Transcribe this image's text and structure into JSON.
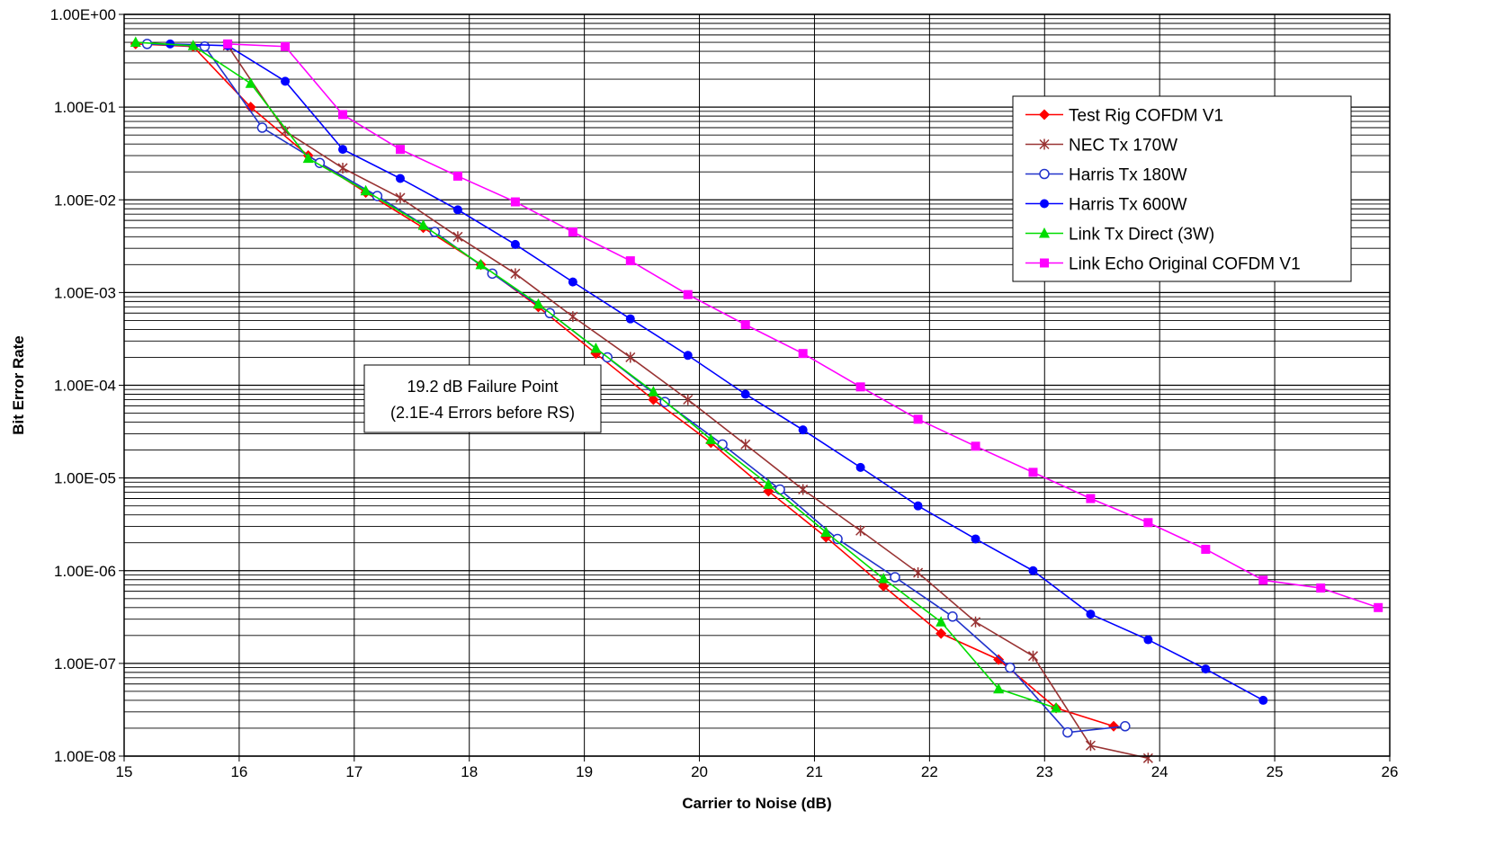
{
  "chart_data": {
    "type": "line",
    "title": "",
    "xlabel": "Carrier to Noise (dB)",
    "ylabel": "Bit Error Rate",
    "xlim": [
      15,
      26
    ],
    "ylim": [
      1e-08,
      1
    ],
    "y_scale": "log",
    "grid": true,
    "legend_position": "top-right",
    "x_ticks": [
      "15",
      "16",
      "17",
      "18",
      "19",
      "20",
      "21",
      "22",
      "23",
      "24",
      "25",
      "26"
    ],
    "y_ticks": [
      "1.00E+00",
      "1.00E-01",
      "1.00E-02",
      "1.00E-03",
      "1.00E-04",
      "1.00E-05",
      "1.00E-06",
      "1.00E-07",
      "1.00E-08"
    ],
    "annotation": {
      "lines": [
        "19.2 dB Failure Point",
        "(2.1E-4 Errors before RS)"
      ]
    },
    "series": [
      {
        "name": "Test Rig COFDM V1",
        "color": "#ff0000",
        "marker": "diamond",
        "x": [
          15.1,
          15.6,
          16.1,
          16.6,
          17.1,
          17.6,
          18.1,
          18.6,
          19.1,
          19.6,
          20.1,
          20.6,
          21.1,
          21.6,
          22.1,
          22.6,
          23.1,
          23.6
        ],
        "y": [
          0.48,
          0.45,
          0.1,
          0.03,
          0.012,
          0.005,
          0.002,
          0.0007,
          0.00022,
          7e-05,
          2.4e-05,
          7.2e-06,
          2.3e-06,
          6.8e-07,
          2.1e-07,
          1.1e-07,
          3.3e-08,
          2.1e-08
        ]
      },
      {
        "name": "NEC Tx 170W",
        "color": "#993333",
        "marker": "star",
        "x": [
          15.9,
          16.4,
          16.9,
          17.4,
          17.9,
          18.4,
          18.9,
          19.4,
          19.9,
          20.4,
          20.9,
          21.4,
          21.9,
          22.4,
          22.9,
          23.4,
          23.9
        ],
        "y": [
          0.46,
          0.055,
          0.022,
          0.0105,
          0.004,
          0.0016,
          0.00055,
          0.0002,
          7e-05,
          2.3e-05,
          7.5e-06,
          2.7e-06,
          9.5e-07,
          2.8e-07,
          1.2e-07,
          1.3e-08,
          9.5e-09
        ]
      },
      {
        "name": "Harris Tx 180W",
        "color": "#2233cc",
        "marker": "open-circle",
        "x": [
          15.2,
          15.7,
          16.2,
          16.7,
          17.2,
          17.7,
          18.2,
          18.7,
          19.2,
          19.7,
          20.2,
          20.7,
          21.2,
          21.7,
          22.2,
          22.7,
          23.2,
          23.7
        ],
        "y": [
          0.48,
          0.45,
          0.06,
          0.025,
          0.011,
          0.0045,
          0.0016,
          0.0006,
          0.0002,
          6.6e-05,
          2.3e-05,
          7.5e-06,
          2.2e-06,
          8.5e-07,
          3.2e-07,
          9e-08,
          1.8e-08,
          2.1e-08
        ]
      },
      {
        "name": "Harris Tx 600W",
        "color": "#0000ff",
        "marker": "circle",
        "x": [
          15.4,
          15.9,
          16.4,
          16.9,
          17.4,
          17.9,
          18.4,
          18.9,
          19.4,
          19.9,
          20.4,
          20.9,
          21.4,
          21.9,
          22.4,
          22.9,
          23.4,
          23.9,
          24.4,
          24.9
        ],
        "y": [
          0.48,
          0.46,
          0.19,
          0.035,
          0.017,
          0.0078,
          0.0033,
          0.0013,
          0.00052,
          0.00021,
          8e-05,
          3.3e-05,
          1.3e-05,
          5e-06,
          2.2e-06,
          1e-06,
          3.4e-07,
          1.8e-07,
          8.7e-08,
          4e-08
        ]
      },
      {
        "name": "Link Tx Direct (3W)",
        "color": "#00dd00",
        "marker": "triangle",
        "x": [
          15.1,
          15.6,
          16.1,
          16.6,
          17.1,
          17.6,
          18.1,
          18.6,
          19.1,
          19.6,
          20.1,
          20.6,
          21.1,
          21.6,
          22.1,
          22.6,
          23.1
        ],
        "y": [
          0.5,
          0.46,
          0.18,
          0.028,
          0.0125,
          0.0053,
          0.002,
          0.00075,
          0.00025,
          8.5e-05,
          2.6e-05,
          8.5e-06,
          2.6e-06,
          8.2e-07,
          2.8e-07,
          5.3e-08,
          3.3e-08
        ]
      },
      {
        "name": "Link Echo Original COFDM V1",
        "color": "#ff00ff",
        "marker": "square",
        "x": [
          15.9,
          16.4,
          16.9,
          17.4,
          17.9,
          18.4,
          18.9,
          19.4,
          19.9,
          20.4,
          20.9,
          21.4,
          21.9,
          22.4,
          22.9,
          23.4,
          23.9,
          24.4,
          24.9,
          25.4,
          25.9
        ],
        "y": [
          0.48,
          0.45,
          0.083,
          0.035,
          0.018,
          0.0095,
          0.0045,
          0.0022,
          0.00095,
          0.00045,
          0.00022,
          9.6e-05,
          4.3e-05,
          2.2e-05,
          1.15e-05,
          6e-06,
          3.3e-06,
          1.7e-06,
          7.9e-07,
          6.5e-07,
          4e-07
        ]
      }
    ]
  }
}
